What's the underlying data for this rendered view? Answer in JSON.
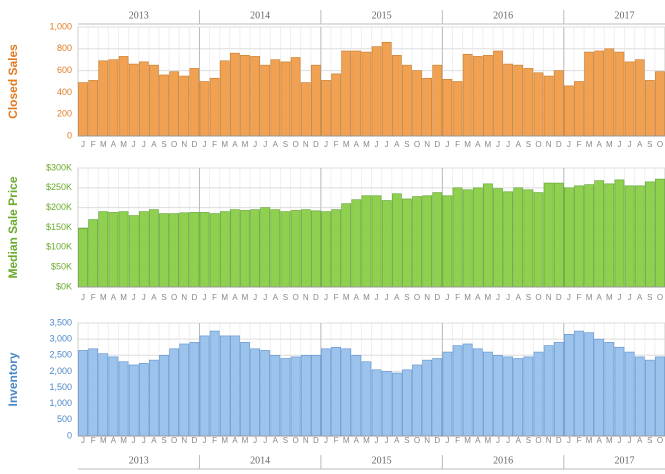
{
  "years": [
    "2013",
    "2014",
    "2015",
    "2016",
    "2017"
  ],
  "chart_data": [
    {
      "type": "bar",
      "axis_label": "Closed Sales",
      "color": "#f0a152",
      "label_color": "#e07b20",
      "categories": [
        "J",
        "F",
        "M",
        "A",
        "M",
        "J",
        "J",
        "A",
        "S",
        "O",
        "N",
        "D",
        "J",
        "F",
        "M",
        "A",
        "M",
        "J",
        "J",
        "A",
        "S",
        "O",
        "N",
        "D",
        "J",
        "F",
        "M",
        "A",
        "M",
        "J",
        "J",
        "A",
        "S",
        "O",
        "N",
        "D",
        "J",
        "F",
        "M",
        "A",
        "M",
        "J",
        "J",
        "A",
        "S",
        "O",
        "N",
        "D",
        "J",
        "F",
        "M",
        "A",
        "M",
        "J",
        "J",
        "A",
        "S",
        "O"
      ],
      "values": [
        490,
        510,
        690,
        700,
        730,
        660,
        680,
        650,
        560,
        590,
        550,
        620,
        500,
        530,
        690,
        760,
        740,
        730,
        650,
        700,
        680,
        720,
        490,
        650,
        510,
        570,
        780,
        780,
        770,
        820,
        860,
        740,
        650,
        600,
        530,
        650,
        520,
        500,
        750,
        730,
        740,
        780,
        660,
        650,
        620,
        580,
        550,
        600,
        460,
        500,
        770,
        780,
        800,
        770,
        680,
        700,
        510,
        590
      ],
      "ylim": [
        0,
        1000
      ],
      "yticks": [
        0,
        200,
        400,
        600,
        800,
        {
          "value": 1000,
          "label": "1,000"
        }
      ],
      "grid": true
    },
    {
      "type": "bar",
      "axis_label": "Median Sale Price",
      "color": "#8fd14f",
      "label_color": "#6aab2e",
      "categories": [
        "J",
        "F",
        "M",
        "A",
        "M",
        "J",
        "J",
        "A",
        "S",
        "O",
        "N",
        "D",
        "J",
        "F",
        "M",
        "A",
        "M",
        "J",
        "J",
        "A",
        "S",
        "O",
        "N",
        "D",
        "J",
        "F",
        "M",
        "A",
        "M",
        "J",
        "J",
        "A",
        "S",
        "O",
        "N",
        "D",
        "J",
        "F",
        "M",
        "A",
        "M",
        "J",
        "J",
        "A",
        "S",
        "O",
        "N",
        "D",
        "J",
        "F",
        "M",
        "A",
        "M",
        "J",
        "J",
        "A",
        "S",
        "O"
      ],
      "values": [
        148000,
        170000,
        190000,
        188000,
        190000,
        180000,
        190000,
        195000,
        185000,
        185000,
        187000,
        188000,
        188000,
        185000,
        190000,
        195000,
        193000,
        195000,
        200000,
        195000,
        190000,
        193000,
        195000,
        192000,
        190000,
        195000,
        210000,
        220000,
        230000,
        230000,
        218000,
        235000,
        222000,
        228000,
        230000,
        238000,
        230000,
        250000,
        245000,
        250000,
        260000,
        248000,
        240000,
        250000,
        245000,
        238000,
        262000,
        262000,
        250000,
        255000,
        258000,
        268000,
        260000,
        270000,
        255000,
        255000,
        265000,
        272000
      ],
      "ylim": [
        0,
        300000
      ],
      "yticks": [
        {
          "value": 0,
          "label": "$0K"
        },
        {
          "value": 50000,
          "label": "$50K"
        },
        {
          "value": 100000,
          "label": "$100K"
        },
        {
          "value": 150000,
          "label": "$150K"
        },
        {
          "value": 200000,
          "label": "$200K"
        },
        {
          "value": 250000,
          "label": "$250K"
        },
        {
          "value": 300000,
          "label": "$300K"
        }
      ],
      "grid": true
    },
    {
      "type": "bar",
      "axis_label": "Inventory",
      "color": "#9cc3ec",
      "label_color": "#4a86c8",
      "categories": [
        "J",
        "F",
        "M",
        "A",
        "M",
        "J",
        "J",
        "A",
        "S",
        "O",
        "N",
        "D",
        "J",
        "F",
        "M",
        "A",
        "M",
        "J",
        "J",
        "A",
        "S",
        "O",
        "N",
        "D",
        "J",
        "F",
        "M",
        "A",
        "M",
        "J",
        "J",
        "A",
        "S",
        "O",
        "N",
        "D",
        "J",
        "F",
        "M",
        "A",
        "M",
        "J",
        "J",
        "A",
        "S",
        "O",
        "N",
        "D",
        "J",
        "F",
        "M",
        "A",
        "M",
        "J",
        "J",
        "A",
        "S",
        "O"
      ],
      "values": [
        2650,
        2700,
        2550,
        2450,
        2300,
        2200,
        2250,
        2350,
        2500,
        2700,
        2850,
        2900,
        3100,
        3250,
        3100,
        3100,
        2900,
        2700,
        2650,
        2500,
        2400,
        2450,
        2500,
        2500,
        2700,
        2750,
        2700,
        2500,
        2300,
        2050,
        2000,
        1950,
        2050,
        2200,
        2350,
        2400,
        2600,
        2800,
        2850,
        2700,
        2600,
        2500,
        2450,
        2400,
        2450,
        2600,
        2800,
        2900,
        3150,
        3250,
        3200,
        3000,
        2900,
        2750,
        2600,
        2450,
        2350,
        2450
      ],
      "ylim": [
        0,
        3500
      ],
      "yticks": [
        0,
        500,
        {
          "value": 1000,
          "label": "1,000"
        },
        {
          "value": 1500,
          "label": "1,500"
        },
        {
          "value": 2000,
          "label": "2,000"
        },
        {
          "value": 2500,
          "label": "2,500"
        },
        {
          "value": 3000,
          "label": "3,000"
        },
        {
          "value": 3500,
          "label": "3,500"
        }
      ],
      "grid": true
    }
  ]
}
